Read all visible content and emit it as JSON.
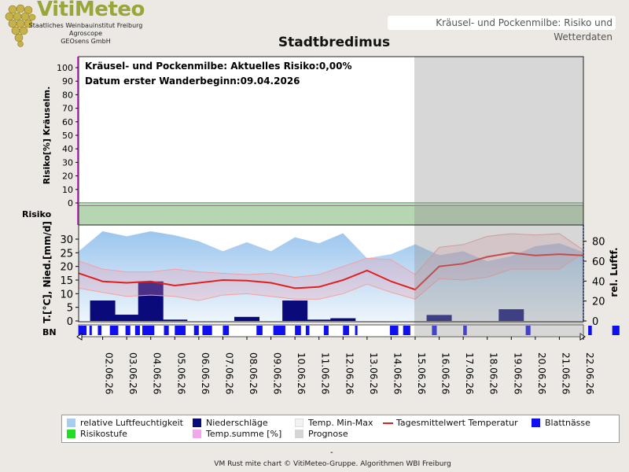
{
  "header": {
    "brand": "VitiMeteo",
    "sub_lines": [
      "Staatliches Weinbauinstitut Freiburg",
      "Agroscope",
      "GEOsens GmbH"
    ],
    "link_text": "Kräusel- und Pockenmilbe: Risiko und Wetterdaten"
  },
  "title": "Stadtbredimus",
  "annotations": {
    "risk_line": "Kräusel- und Pockenmilbe: Aktuelles Risiko:0,00%",
    "date_line": "Datum erster Wanderbeginn:09.04.2026"
  },
  "labels": {
    "risk_axis": "Risiko[%] Kräuselm.",
    "risk_band": "Risiko",
    "weather_left_axis": "T.[°C], Nied.[mm/d]",
    "weather_right_axis": "rel. Luftf.",
    "bn": "BN"
  },
  "chart_data": {
    "type": "line",
    "dates": [
      "02.06.26",
      "03.06.26",
      "04.06.26",
      "05.06.26",
      "06.06.26",
      "07.06.26",
      "08.06.26",
      "09.06.26",
      "10.06.26",
      "11.06.26",
      "12.06.26",
      "13.06.26",
      "14.06.26",
      "15.06.26",
      "16.06.26",
      "17.06.26",
      "18.06.26",
      "19.06.26",
      "20.06.26",
      "21.06.26",
      "22.06.26"
    ],
    "risk_panel": {
      "ylim": [
        0,
        100
      ],
      "yticks": [
        0,
        10,
        20,
        30,
        40,
        50,
        60,
        70,
        80,
        90,
        100
      ],
      "risk_percent": [
        0,
        0,
        0,
        0,
        0,
        0,
        0,
        0,
        0,
        0,
        0,
        0,
        0,
        0,
        0,
        0,
        0,
        0,
        0,
        0,
        0,
        0
      ],
      "temp_sum_percent": [
        0,
        0,
        0,
        0,
        0,
        0,
        0,
        0,
        0,
        0,
        0,
        0,
        0,
        0,
        0,
        0,
        0,
        0,
        0,
        0,
        0,
        0
      ]
    },
    "weather_panel": {
      "left_ylim": [
        0,
        30
      ],
      "left_yticks": [
        0,
        5,
        10,
        15,
        20,
        25,
        30
      ],
      "right_ylim": [
        0,
        90
      ],
      "right_yticks": [
        0,
        20,
        40,
        60,
        80
      ],
      "x_points": [
        "01.06.26",
        "02.06.26",
        "03.06.26",
        "04.06.26",
        "05.06.26",
        "06.06.26",
        "07.06.26",
        "08.06.26",
        "09.06.26",
        "10.06.26",
        "11.06.26",
        "12.06.26",
        "13.06.26",
        "14.06.26",
        "15.06.26",
        "16.06.26",
        "17.06.26",
        "18.06.26",
        "19.06.26",
        "20.06.26",
        "21.06.26",
        "22.06.26"
      ],
      "temp_mean": [
        17.5,
        14.5,
        14,
        14.5,
        13,
        14,
        15,
        14.8,
        14,
        12,
        12.5,
        15,
        18.5,
        14.5,
        11.5,
        20,
        21,
        23.5,
        25,
        24,
        24.5,
        24
      ],
      "temp_min": [
        12,
        10.5,
        9,
        9.5,
        9,
        7.5,
        9.5,
        10,
        9,
        8,
        8,
        10,
        13.5,
        10.5,
        8,
        15.5,
        15,
        16,
        19,
        19,
        19,
        25
      ],
      "temp_max": [
        22,
        19,
        18,
        18,
        19,
        18,
        17.5,
        17,
        17.5,
        16,
        17,
        20,
        23,
        22.5,
        17,
        27,
        28,
        31,
        32,
        31.5,
        32,
        26
      ],
      "rel_humidity": [
        70,
        90,
        85,
        90,
        86,
        80,
        70,
        79,
        70,
        84,
        78,
        88,
        63,
        67,
        77,
        66,
        70,
        60,
        65,
        75,
        78,
        69
      ],
      "precip_dates": [
        "02.06.26",
        "03.06.26",
        "04.06.26",
        "05.06.26",
        "08.06.26",
        "10.06.26",
        "11.06.26",
        "12.06.26",
        "16.06.26",
        "19.06.26"
      ],
      "precip_mm": [
        7.5,
        2.3,
        14.5,
        0.5,
        1.5,
        7.5,
        0.5,
        1,
        2.2,
        4.3
      ]
    },
    "leaf_wetness_bn": [
      [
        0.0,
        0.33
      ],
      [
        0.45,
        0.55
      ],
      [
        0.8,
        0.95
      ],
      [
        1.3,
        1.65
      ],
      [
        1.95,
        2.15
      ],
      [
        2.35,
        2.55
      ],
      [
        2.65,
        3.15
      ],
      [
        3.55,
        3.75
      ],
      [
        4.0,
        4.45
      ],
      [
        4.8,
        5.0
      ],
      [
        5.15,
        5.55
      ],
      [
        6.0,
        6.25
      ],
      [
        7.4,
        7.65
      ],
      [
        8.1,
        8.6
      ],
      [
        9.0,
        9.25
      ],
      [
        9.45,
        9.6
      ],
      [
        10.2,
        10.4
      ],
      [
        11.0,
        11.25
      ],
      [
        11.5,
        11.6
      ],
      [
        12.95,
        13.3
      ],
      [
        13.5,
        13.8
      ],
      [
        14.7,
        14.9
      ],
      [
        16.0,
        16.15
      ],
      [
        18.6,
        18.8
      ],
      [
        21.2,
        21.35
      ],
      [
        22.2,
        22.5
      ]
    ],
    "forecast_from": "15.06.26",
    "legend": [
      {
        "label": "relative Luftfeuchtigkeit",
        "color": "#a8cdf0"
      },
      {
        "label": "Niederschläge",
        "color": "#0a0a7a"
      },
      {
        "label": "Temp. Min-Max",
        "color": "#f2f2f2"
      },
      {
        "label": "Tagesmittelwert Temperatur",
        "color": "#e02020"
      },
      {
        "label": "Blattnässe",
        "color": "#1010ee"
      },
      {
        "label": "Risikostufe",
        "color": "#22dd22"
      },
      {
        "label": "Temp.summe [%]",
        "color": "#f0a8ea"
      },
      {
        "label": "Prognose",
        "color": "#d5d5d5"
      }
    ]
  },
  "footer": {
    "dash": "-",
    "text": "VM Rust mite chart © VitiMeteo-Gruppe. Algorithmen WBI Freiburg"
  }
}
